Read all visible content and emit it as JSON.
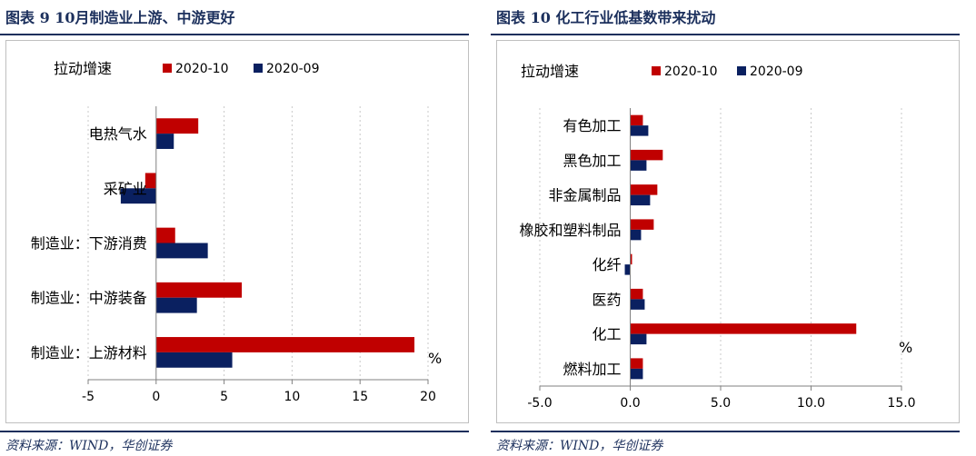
{
  "colors": {
    "series_2020_10": "#c00000",
    "series_2020_09": "#0a2060",
    "title": "#1b2f5c"
  },
  "left_panel": {
    "title": "图表 9   10月制造业上游、中游更好",
    "source": "资料来源：WIND，华创证券"
  },
  "right_panel": {
    "title": "图表 10   化工行业低基数带来扰动",
    "source": "资料来源：WIND，华创证券"
  },
  "chart_data": [
    {
      "type": "bar",
      "orientation": "horizontal",
      "panel_label": "拉动增速",
      "unit_label": "%",
      "categories": [
        "电热气水",
        "采矿业",
        "制造业：下游消费",
        "制造业：中游装备",
        "制造业：上游材料"
      ],
      "series": [
        {
          "name": "2020-10",
          "values": [
            3.1,
            -0.8,
            1.4,
            6.3,
            19.0
          ]
        },
        {
          "name": "2020-09",
          "values": [
            1.3,
            -2.6,
            3.8,
            3.0,
            5.6
          ]
        }
      ],
      "xlim": [
        -5,
        20
      ],
      "xticks": [
        -5,
        0,
        5,
        10,
        15,
        20
      ],
      "xtick_labels": [
        "-5",
        "0",
        "5",
        "10",
        "15",
        "20"
      ],
      "grid": "vertical dashed",
      "legend_position": "top"
    },
    {
      "type": "bar",
      "orientation": "horizontal",
      "panel_label": "拉动增速",
      "unit_label": "%",
      "categories": [
        "有色加工",
        "黑色加工",
        "非金属制品",
        "橡胶和塑料制品",
        "化纤",
        "医药",
        "化工",
        "燃料加工"
      ],
      "series": [
        {
          "name": "2020-10",
          "values": [
            0.7,
            1.8,
            1.5,
            1.3,
            0.1,
            0.7,
            12.5,
            0.7
          ]
        },
        {
          "name": "2020-09",
          "values": [
            1.0,
            0.9,
            1.1,
            0.6,
            -0.3,
            0.8,
            0.9,
            0.7
          ]
        }
      ],
      "xlim": [
        -5,
        15
      ],
      "xticks": [
        -5,
        0,
        5,
        10,
        15
      ],
      "xtick_labels": [
        "-5.0",
        "0.0",
        "5.0",
        "10.0",
        "15.0"
      ],
      "grid": "vertical dashed",
      "legend_position": "top"
    }
  ]
}
